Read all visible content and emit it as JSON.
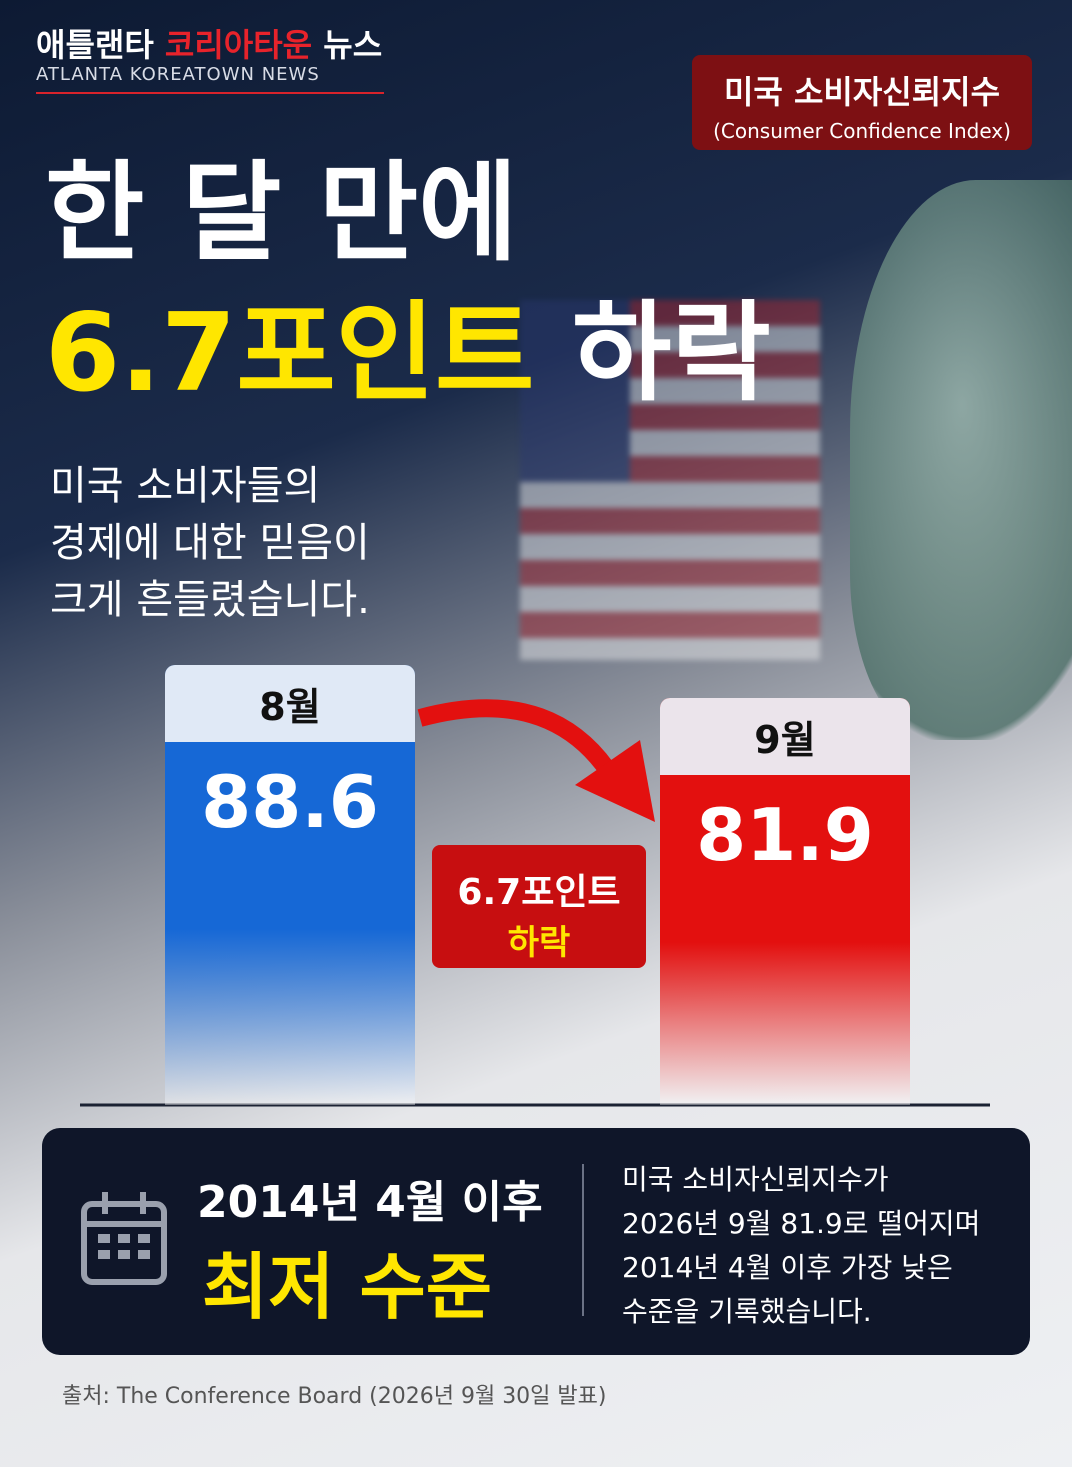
{
  "header": {
    "brand_a": "애틀랜타",
    "brand_b": "코리아타운",
    "brand_c": "뉴스",
    "brand_en": "ATLANTA KOREATOWN NEWS"
  },
  "badge": {
    "title": "미국 소비자신뢰지수",
    "subtitle": "(Consumer Confidence Index)"
  },
  "headline": {
    "line1": "한 달 만에",
    "line2_highlight": "6.7포인트",
    "line2_rest": "하락"
  },
  "intro": [
    "미국 소비자들의",
    "경제에 대한 믿음이",
    "크게 흔들렸습니다."
  ],
  "chart_data": {
    "type": "bar",
    "categories": [
      "8월",
      "9월"
    ],
    "values": [
      88.6,
      81.9
    ],
    "colors": [
      "#1668d6",
      "#e3100f"
    ],
    "annotation": {
      "change": "6.7포인트",
      "label": "하락"
    }
  },
  "summary": {
    "title": "2014년 4월 이후",
    "highlight": "최저 수준",
    "text": [
      "미국 소비자신뢰지수가",
      "2026년 9월 81.9로 떨어지며",
      "2014년 4월 이후 가장 낮은",
      "수준을 기록했습니다."
    ]
  },
  "source": "출처: The Conference Board (2026년 9월 30일 발표)"
}
